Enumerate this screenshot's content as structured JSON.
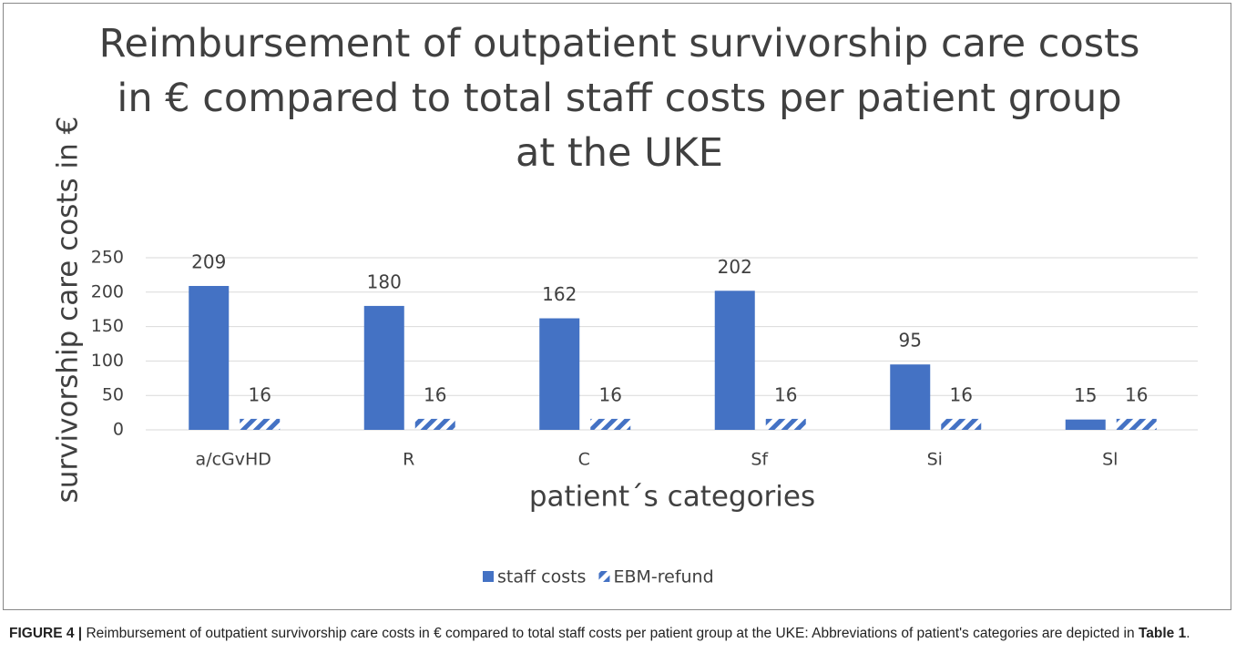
{
  "chart_data": {
    "type": "bar",
    "title": "Reimbursement of outpatient survivorship care costs in € compared to total staff costs per patient group at the UKE",
    "x_label": "patient´s categories",
    "y_label": "survivorship care costs in €",
    "categories": [
      "a/cGvHD",
      "R",
      "C",
      "Sf",
      "Si",
      "Sl"
    ],
    "series": [
      {
        "name": "staff costs",
        "color": "#4472c4",
        "hatch": false,
        "values": [
          209,
          180,
          162,
          202,
          95,
          15
        ]
      },
      {
        "name": "EBM-refund",
        "color": "#4472c4",
        "hatch": true,
        "values": [
          16,
          16,
          16,
          16,
          16,
          16
        ]
      }
    ],
    "ylim": [
      0,
      250
    ],
    "yticks": [
      0,
      50,
      100,
      150,
      200,
      250
    ],
    "grid": true,
    "legend": "bottom"
  },
  "caption": {
    "label": "FIGURE 4 |",
    "text": "Reimbursement of outpatient survivorship care costs in € compared to total staff costs per patient group at the UKE: Abbreviations of patient's categories are depicted in",
    "ref": "Table 1",
    "end": "."
  }
}
